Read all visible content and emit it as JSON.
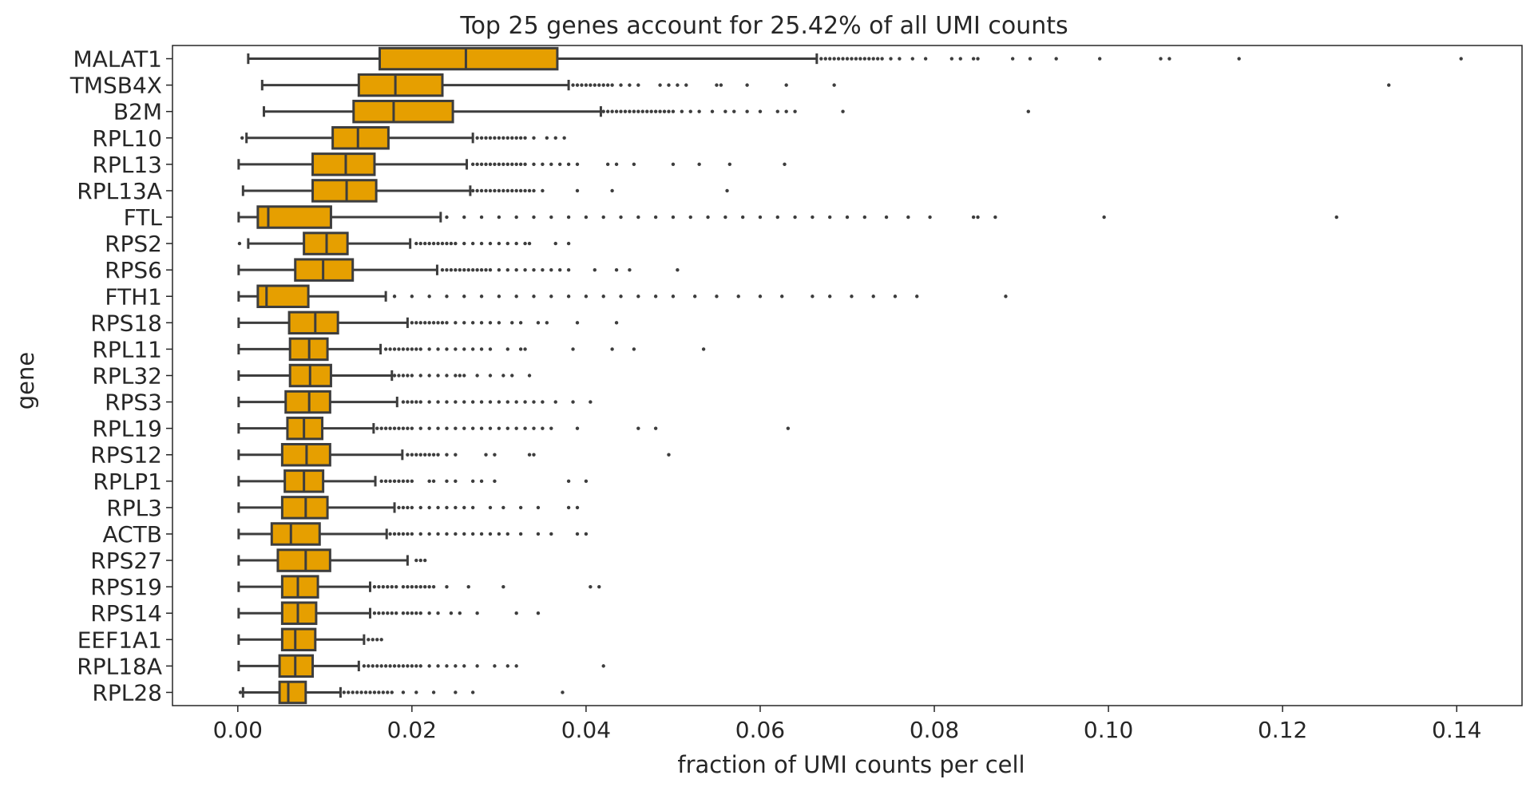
{
  "chart_data": {
    "type": "box",
    "orientation": "horizontal",
    "title": "Top 25 genes account for 25.42% of all UMI counts",
    "xlabel": "fraction of UMI counts per cell",
    "ylabel": "gene",
    "xlim": [
      -0.0075,
      0.1475
    ],
    "xticks": [
      0.0,
      0.02,
      0.04,
      0.06,
      0.08,
      0.1,
      0.12,
      0.14
    ],
    "xtick_labels": [
      "0.00",
      "0.02",
      "0.04",
      "0.06",
      "0.08",
      "0.10",
      "0.12",
      "0.14"
    ],
    "grid": false,
    "box_color": "#e69f00",
    "line_color": "#3d3d3d",
    "genes": [
      {
        "name": "MALAT1",
        "whislo": 0.0012,
        "q1": 0.0163,
        "med": 0.0262,
        "q3": 0.0367,
        "whishi": 0.0665,
        "outliers": [
          0.067,
          0.0675,
          0.068,
          0.0685,
          0.069,
          0.0695,
          0.07,
          0.0705,
          0.071,
          0.0715,
          0.072,
          0.0725,
          0.073,
          0.0735,
          0.074,
          0.075,
          0.076,
          0.0775,
          0.079,
          0.082,
          0.083,
          0.0845,
          0.085,
          0.089,
          0.091,
          0.094,
          0.099,
          0.106,
          0.107,
          0.115,
          0.1405
        ]
      },
      {
        "name": "TMSB4X",
        "whislo": 0.0028,
        "q1": 0.0139,
        "med": 0.0181,
        "q3": 0.0235,
        "whishi": 0.038,
        "outliers": [
          0.0385,
          0.039,
          0.0395,
          0.04,
          0.0405,
          0.041,
          0.0415,
          0.042,
          0.0425,
          0.043,
          0.044,
          0.045,
          0.046,
          0.0485,
          0.0495,
          0.0505,
          0.0515,
          0.055,
          0.0555,
          0.0585,
          0.063,
          0.0685,
          0.1322
        ]
      },
      {
        "name": "B2M",
        "whislo": 0.003,
        "q1": 0.0133,
        "med": 0.0179,
        "q3": 0.0247,
        "whishi": 0.0417,
        "outliers": [
          0.042,
          0.0425,
          0.043,
          0.0435,
          0.044,
          0.0445,
          0.045,
          0.0455,
          0.046,
          0.0465,
          0.047,
          0.0475,
          0.048,
          0.0485,
          0.049,
          0.0495,
          0.05,
          0.051,
          0.052,
          0.053,
          0.0545,
          0.056,
          0.057,
          0.0585,
          0.06,
          0.062,
          0.063,
          0.064,
          0.0695,
          0.0908
        ]
      },
      {
        "name": "RPL10",
        "whislo": 0.001,
        "q1": 0.0109,
        "med": 0.0138,
        "q3": 0.0173,
        "whishi": 0.027,
        "outliers": [
          0.0005,
          0.0275,
          0.028,
          0.0285,
          0.029,
          0.0295,
          0.03,
          0.0305,
          0.031,
          0.0315,
          0.032,
          0.0325,
          0.033,
          0.034,
          0.0355,
          0.0365,
          0.0375
        ]
      },
      {
        "name": "RPL13",
        "whislo": 0.0001,
        "q1": 0.0086,
        "med": 0.0124,
        "q3": 0.0157,
        "whishi": 0.0263,
        "outliers": [
          0.027,
          0.0275,
          0.028,
          0.0285,
          0.029,
          0.0295,
          0.03,
          0.0305,
          0.031,
          0.0315,
          0.032,
          0.0325,
          0.033,
          0.034,
          0.035,
          0.036,
          0.037,
          0.038,
          0.039,
          0.0425,
          0.0435,
          0.0455,
          0.05,
          0.053,
          0.0565,
          0.0628
        ]
      },
      {
        "name": "RPL13A",
        "whislo": 0.0006,
        "q1": 0.0086,
        "med": 0.0125,
        "q3": 0.0159,
        "whishi": 0.0267,
        "outliers": [
          0.027,
          0.0275,
          0.028,
          0.0285,
          0.029,
          0.0295,
          0.03,
          0.0305,
          0.031,
          0.0315,
          0.032,
          0.0325,
          0.033,
          0.0335,
          0.034,
          0.035,
          0.039,
          0.043,
          0.0562
        ]
      },
      {
        "name": "FTL",
        "whislo": 0.0001,
        "q1": 0.0023,
        "med": 0.0035,
        "q3": 0.0107,
        "whishi": 0.0233,
        "outliers": [
          0.024,
          0.026,
          0.028,
          0.03,
          0.032,
          0.034,
          0.036,
          0.038,
          0.04,
          0.042,
          0.044,
          0.046,
          0.048,
          0.05,
          0.052,
          0.054,
          0.056,
          0.058,
          0.06,
          0.062,
          0.064,
          0.066,
          0.068,
          0.07,
          0.072,
          0.0745,
          0.077,
          0.0795,
          0.0845,
          0.085,
          0.087,
          0.0995,
          0.1262
        ]
      },
      {
        "name": "RPS2",
        "whislo": 0.0012,
        "q1": 0.0076,
        "med": 0.0102,
        "q3": 0.0126,
        "whishi": 0.0198,
        "outliers": [
          0.0002,
          0.0205,
          0.021,
          0.0215,
          0.022,
          0.0225,
          0.023,
          0.0235,
          0.024,
          0.0245,
          0.025,
          0.026,
          0.027,
          0.028,
          0.029,
          0.03,
          0.031,
          0.032,
          0.033,
          0.0335,
          0.0365,
          0.038
        ]
      },
      {
        "name": "RPS6",
        "whislo": 0.0001,
        "q1": 0.0066,
        "med": 0.0098,
        "q3": 0.0132,
        "whishi": 0.0229,
        "outliers": [
          0.0235,
          0.024,
          0.0245,
          0.025,
          0.0255,
          0.026,
          0.0265,
          0.027,
          0.0275,
          0.028,
          0.0285,
          0.029,
          0.03,
          0.031,
          0.032,
          0.033,
          0.034,
          0.035,
          0.036,
          0.037,
          0.038,
          0.041,
          0.0435,
          0.045,
          0.0505
        ]
      },
      {
        "name": "FTH1",
        "whislo": 0.0001,
        "q1": 0.0023,
        "med": 0.0033,
        "q3": 0.0081,
        "whishi": 0.017,
        "outliers": [
          0.018,
          0.02,
          0.022,
          0.024,
          0.026,
          0.028,
          0.03,
          0.032,
          0.034,
          0.036,
          0.038,
          0.04,
          0.042,
          0.044,
          0.046,
          0.048,
          0.05,
          0.0525,
          0.055,
          0.0575,
          0.06,
          0.0625,
          0.066,
          0.068,
          0.0705,
          0.073,
          0.0755,
          0.078,
          0.0882
        ]
      },
      {
        "name": "RPS18",
        "whislo": 0.0001,
        "q1": 0.0059,
        "med": 0.0089,
        "q3": 0.0115,
        "whishi": 0.0195,
        "outliers": [
          0.02,
          0.0205,
          0.021,
          0.0215,
          0.022,
          0.0225,
          0.023,
          0.0235,
          0.024,
          0.025,
          0.026,
          0.027,
          0.028,
          0.029,
          0.03,
          0.0315,
          0.0325,
          0.0345,
          0.0355,
          0.039,
          0.0435
        ]
      },
      {
        "name": "RPL11",
        "whislo": 0.0001,
        "q1": 0.006,
        "med": 0.0082,
        "q3": 0.0103,
        "whishi": 0.0164,
        "outliers": [
          0.017,
          0.0175,
          0.018,
          0.0185,
          0.019,
          0.0195,
          0.02,
          0.0205,
          0.021,
          0.022,
          0.023,
          0.024,
          0.025,
          0.026,
          0.027,
          0.028,
          0.029,
          0.031,
          0.0325,
          0.033,
          0.0385,
          0.043,
          0.0455,
          0.0535
        ]
      },
      {
        "name": "RPL32",
        "whislo": 0.0001,
        "q1": 0.006,
        "med": 0.0083,
        "q3": 0.0107,
        "whishi": 0.0177,
        "outliers": [
          0.018,
          0.0185,
          0.019,
          0.0195,
          0.02,
          0.021,
          0.022,
          0.023,
          0.024,
          0.025,
          0.0255,
          0.026,
          0.0275,
          0.029,
          0.0305,
          0.0315,
          0.0335
        ]
      },
      {
        "name": "RPS3",
        "whislo": 0.0001,
        "q1": 0.0055,
        "med": 0.0082,
        "q3": 0.0106,
        "whishi": 0.0183,
        "outliers": [
          0.019,
          0.0195,
          0.02,
          0.0205,
          0.021,
          0.022,
          0.023,
          0.024,
          0.025,
          0.026,
          0.027,
          0.028,
          0.029,
          0.03,
          0.031,
          0.032,
          0.033,
          0.034,
          0.035,
          0.0365,
          0.0385,
          0.0405
        ]
      },
      {
        "name": "RPL19",
        "whislo": 0.0001,
        "q1": 0.0057,
        "med": 0.0076,
        "q3": 0.0097,
        "whishi": 0.0156,
        "outliers": [
          0.016,
          0.0165,
          0.017,
          0.0175,
          0.018,
          0.0185,
          0.019,
          0.0195,
          0.02,
          0.021,
          0.022,
          0.023,
          0.024,
          0.025,
          0.026,
          0.027,
          0.028,
          0.029,
          0.03,
          0.031,
          0.032,
          0.033,
          0.034,
          0.035,
          0.036,
          0.039,
          0.046,
          0.048,
          0.0632
        ]
      },
      {
        "name": "RPS12",
        "whislo": 0.0001,
        "q1": 0.0051,
        "med": 0.0079,
        "q3": 0.0106,
        "whishi": 0.0189,
        "outliers": [
          0.0195,
          0.02,
          0.0205,
          0.021,
          0.0215,
          0.022,
          0.0225,
          0.023,
          0.024,
          0.025,
          0.0285,
          0.0295,
          0.0335,
          0.034,
          0.0495
        ]
      },
      {
        "name": "RPLP1",
        "whislo": 0.0001,
        "q1": 0.0054,
        "med": 0.0076,
        "q3": 0.0098,
        "whishi": 0.0158,
        "outliers": [
          0.0165,
          0.017,
          0.0175,
          0.018,
          0.0185,
          0.019,
          0.0195,
          0.02,
          0.022,
          0.0225,
          0.024,
          0.025,
          0.027,
          0.028,
          0.0295,
          0.038,
          0.04
        ]
      },
      {
        "name": "RPL3",
        "whislo": 0.0001,
        "q1": 0.0051,
        "med": 0.0078,
        "q3": 0.0103,
        "whishi": 0.018,
        "outliers": [
          0.0185,
          0.019,
          0.0195,
          0.02,
          0.021,
          0.022,
          0.023,
          0.024,
          0.025,
          0.026,
          0.027,
          0.029,
          0.0305,
          0.0325,
          0.0345,
          0.038,
          0.039
        ]
      },
      {
        "name": "ACTB",
        "whislo": 0.0001,
        "q1": 0.0039,
        "med": 0.0061,
        "q3": 0.0094,
        "whishi": 0.0171,
        "outliers": [
          0.0175,
          0.018,
          0.0185,
          0.019,
          0.0195,
          0.02,
          0.021,
          0.022,
          0.023,
          0.024,
          0.025,
          0.026,
          0.027,
          0.028,
          0.029,
          0.03,
          0.031,
          0.0325,
          0.0345,
          0.036,
          0.039,
          0.04
        ]
      },
      {
        "name": "RPS27",
        "whislo": 0.0001,
        "q1": 0.0046,
        "med": 0.0078,
        "q3": 0.0106,
        "whishi": 0.0195,
        "outliers": [
          0.0205,
          0.021,
          0.0215
        ]
      },
      {
        "name": "RPS19",
        "whislo": 0.0001,
        "q1": 0.0051,
        "med": 0.0069,
        "q3": 0.0092,
        "whishi": 0.0152,
        "outliers": [
          0.0157,
          0.0162,
          0.0167,
          0.0172,
          0.0177,
          0.0182,
          0.019,
          0.0195,
          0.02,
          0.0205,
          0.021,
          0.0215,
          0.022,
          0.0225,
          0.024,
          0.0265,
          0.0305,
          0.0405,
          0.0415
        ]
      },
      {
        "name": "RPS14",
        "whislo": 0.0001,
        "q1": 0.0051,
        "med": 0.0069,
        "q3": 0.009,
        "whishi": 0.0152,
        "outliers": [
          0.0157,
          0.0162,
          0.0167,
          0.0172,
          0.0177,
          0.0182,
          0.019,
          0.0195,
          0.02,
          0.0205,
          0.021,
          0.022,
          0.023,
          0.0245,
          0.0255,
          0.0275,
          0.032,
          0.0345
        ]
      },
      {
        "name": "EEF1A1",
        "whislo": 0.0001,
        "q1": 0.0051,
        "med": 0.0066,
        "q3": 0.0089,
        "whishi": 0.0145,
        "outliers": [
          0.015,
          0.0155,
          0.016,
          0.0165
        ]
      },
      {
        "name": "RPL18A",
        "whislo": 0.0001,
        "q1": 0.0048,
        "med": 0.0066,
        "q3": 0.0086,
        "whishi": 0.0139,
        "outliers": [
          0.0145,
          0.015,
          0.0155,
          0.016,
          0.0165,
          0.017,
          0.0175,
          0.018,
          0.0185,
          0.019,
          0.0195,
          0.02,
          0.0205,
          0.021,
          0.022,
          0.023,
          0.024,
          0.025,
          0.026,
          0.0275,
          0.0295,
          0.031,
          0.032,
          0.042
        ]
      },
      {
        "name": "RPL28",
        "whislo": 0.0006,
        "q1": 0.0048,
        "med": 0.0058,
        "q3": 0.0078,
        "whishi": 0.0118,
        "outliers": [
          0.0003,
          0.0122,
          0.0127,
          0.0132,
          0.0137,
          0.0142,
          0.0147,
          0.0152,
          0.0157,
          0.0162,
          0.0167,
          0.0172,
          0.0177,
          0.019,
          0.0205,
          0.0225,
          0.025,
          0.027,
          0.0373
        ]
      }
    ]
  }
}
